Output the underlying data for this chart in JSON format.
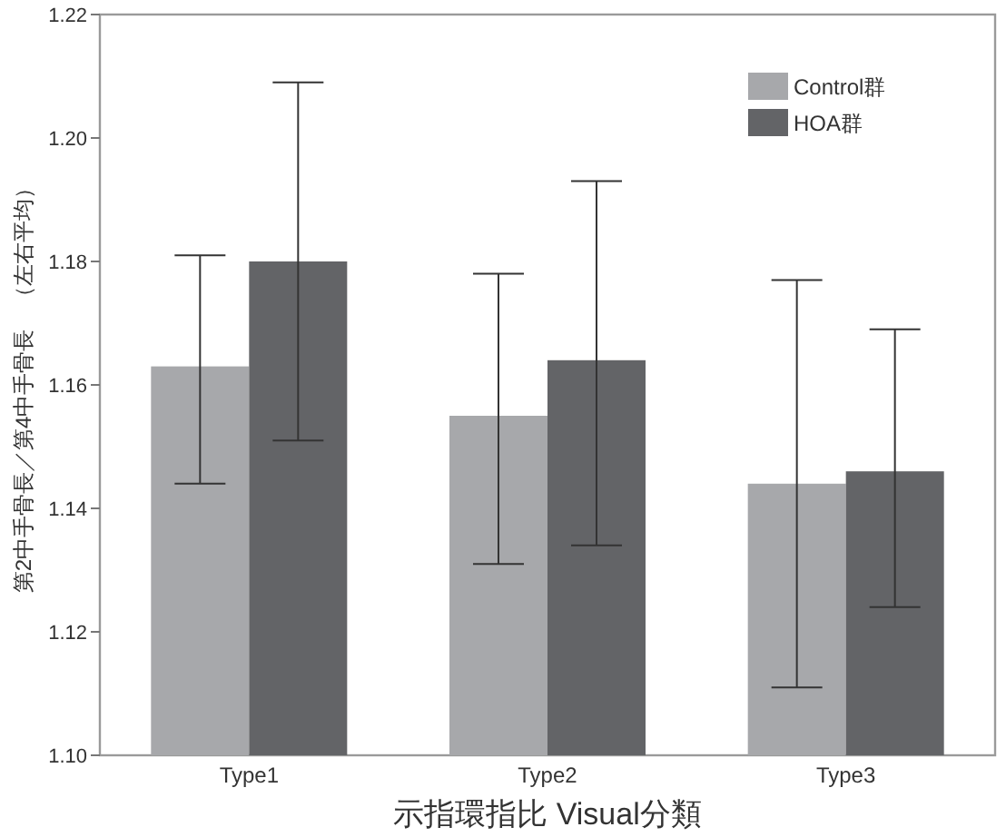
{
  "chart_data": {
    "type": "bar",
    "xlabel": "示指環指比 Visual分類",
    "ylabel": "第2中手骨長／第4中手骨長　（左右平均）",
    "categories": [
      "Type1",
      "Type2",
      "Type3"
    ],
    "series": [
      {
        "name": "Control群",
        "color": "#a7a8ab",
        "values": [
          1.163,
          1.155,
          1.144
        ],
        "errors": [
          [
            1.144,
            1.181
          ],
          [
            1.131,
            1.178
          ],
          [
            1.111,
            1.177
          ]
        ]
      },
      {
        "name": "HOA群",
        "color": "#636467",
        "values": [
          1.18,
          1.164,
          1.146
        ],
        "errors": [
          [
            1.151,
            1.209
          ],
          [
            1.134,
            1.193
          ],
          [
            1.124,
            1.169
          ]
        ]
      }
    ],
    "ylim": [
      1.1,
      1.22
    ],
    "yticks": [
      {
        "value": 1.1,
        "label": "1.10"
      },
      1.12,
      1.14,
      1.16,
      1.18,
      {
        "value": 1.2,
        "label": "1.20"
      },
      1.22
    ],
    "grid": false,
    "legend": "top right"
  }
}
